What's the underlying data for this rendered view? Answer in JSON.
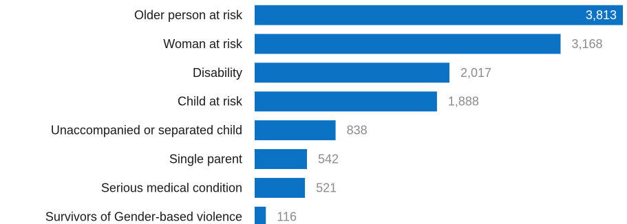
{
  "chart_data": {
    "type": "bar",
    "orientation": "horizontal",
    "title": "",
    "xlabel": "",
    "ylabel": "",
    "categories": [
      "Older person at risk",
      "Woman at risk",
      "Disability",
      "Child at risk",
      "Unaccompanied or separated child",
      "Single parent",
      "Serious medical condition",
      "Survivors of Gender-based violence"
    ],
    "values": [
      3813,
      3168,
      2017,
      1888,
      838,
      542,
      521,
      116
    ],
    "value_labels": [
      "3,813",
      "3,168",
      "2,017",
      "1,888",
      "838",
      "542",
      "521",
      "116"
    ],
    "xlim": [
      0,
      3813
    ],
    "grid": false,
    "legend": "none",
    "colors": {
      "bar": "#0b72c4",
      "value_label_outside": "#8c8c8c",
      "value_label_inside": "#ffffff",
      "category_label": "#1a1a1a"
    }
  }
}
